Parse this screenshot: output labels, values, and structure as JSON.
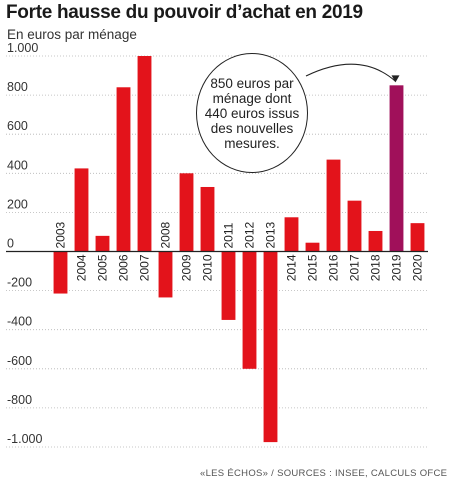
{
  "header": {
    "title": "Forte hausse du pouvoir d’achat en 2019",
    "subtitle": "En euros par ménage"
  },
  "callout": {
    "text": "850 euros par ménage dont 440 euros issus des nouvelles mesures."
  },
  "footer": {
    "source": "«LES ÉCHOS» / SOURCES : INSEE, CALCULS OFCE"
  },
  "colors": {
    "bar": "#e3131b",
    "highlight": "#a0105a",
    "axis": "#222222",
    "grid": "#b5b5b5"
  },
  "chart_data": {
    "type": "bar",
    "title": "Forte hausse du pouvoir d’achat en 2019",
    "ylabel": "En euros par ménage",
    "ylim": [
      -1000,
      1000
    ],
    "yticks": [
      1000,
      800,
      600,
      400,
      200,
      0,
      -200,
      -400,
      -600,
      -800,
      -1000
    ],
    "ytick_labels": [
      "1.000",
      "800",
      "600",
      "400",
      "200",
      "0",
      "-200",
      "-400",
      "-600",
      "-800",
      "-1.000"
    ],
    "grid": true,
    "categories": [
      "2003",
      "2004",
      "2005",
      "2006",
      "2007",
      "2008",
      "2009",
      "2010",
      "2011",
      "2012",
      "2013",
      "2014",
      "2015",
      "2016",
      "2017",
      "2018",
      "2019",
      "2020"
    ],
    "values": [
      -215,
      425,
      80,
      840,
      1000,
      -235,
      400,
      330,
      -350,
      -600,
      -975,
      175,
      45,
      470,
      260,
      105,
      850,
      145
    ],
    "highlight": "2019"
  }
}
